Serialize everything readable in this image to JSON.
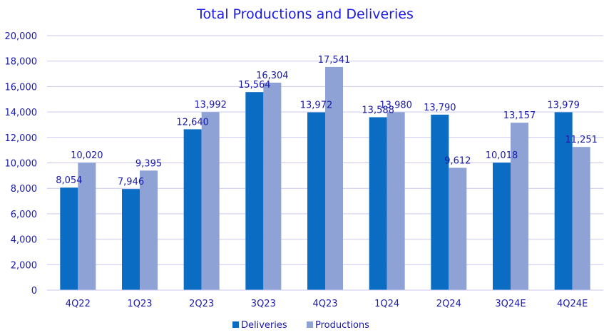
{
  "chart_data": {
    "type": "bar",
    "title": "Total Productions and Deliveries",
    "categories": [
      "4Q22",
      "1Q23",
      "2Q23",
      "3Q23",
      "4Q23",
      "1Q24",
      "2Q24",
      "3Q24E",
      "4Q24E"
    ],
    "series": [
      {
        "name": "Deliveries",
        "color": "#0b6cc4",
        "values": [
          8054,
          7946,
          12640,
          15564,
          13972,
          13588,
          13790,
          10018,
          13979
        ]
      },
      {
        "name": "Productions",
        "color": "#8fa2d6",
        "values": [
          10020,
          9395,
          13992,
          16304,
          17541,
          13980,
          9612,
          13157,
          11251
        ]
      }
    ],
    "ylim": [
      0,
      20000
    ],
    "yticks": [
      0,
      2000,
      4000,
      6000,
      8000,
      10000,
      12000,
      14000,
      16000,
      18000,
      20000
    ],
    "grid": true,
    "legend_position": "bottom",
    "xlabel": "",
    "ylabel": ""
  }
}
